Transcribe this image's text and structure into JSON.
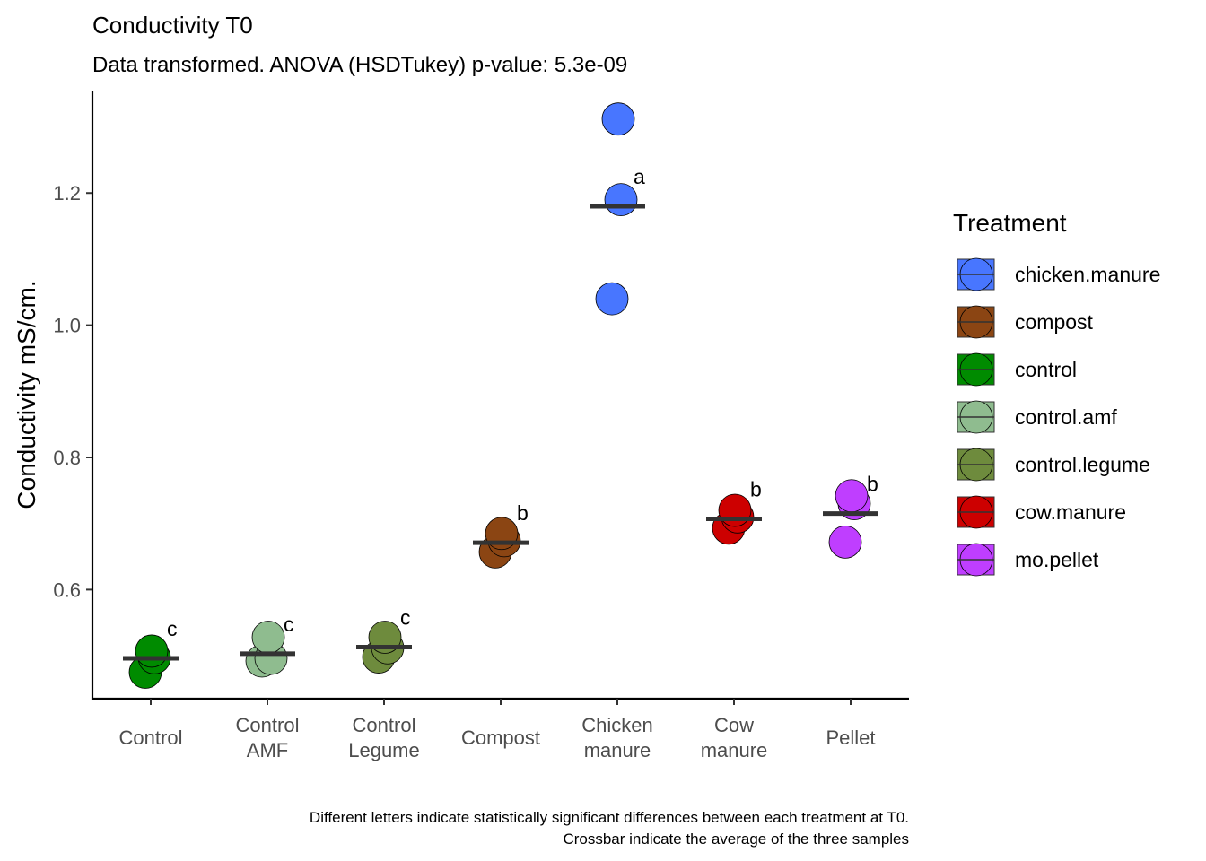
{
  "chart_data": {
    "type": "scatter",
    "title": "Conductivity T0",
    "subtitle": "Data transformed. ANOVA (HSDTukey) p-value: 5.3e-09",
    "xlabel": "",
    "ylabel": "Conductivity mS/cm.",
    "ylim": [
      0.435,
      1.355
    ],
    "yticks": [
      "0.6",
      "0.8",
      "1.0",
      "1.2"
    ],
    "grid": false,
    "categories": [
      "Control",
      "Control\nAMF",
      "Control\nLegume",
      "Compost",
      "Chicken\nmanure",
      "Cow\nmanure",
      "Pellet"
    ],
    "series": [
      {
        "category": "Control",
        "treatment": "control",
        "values": [
          0.475,
          0.497,
          0.507
        ],
        "mean": 0.496,
        "letter": "c",
        "color": "#008b00"
      },
      {
        "category": "Control\nAMF",
        "treatment": "control.amf",
        "values": [
          0.492,
          0.496,
          0.528
        ],
        "mean": 0.503,
        "letter": "c",
        "color": "#8fbc8f"
      },
      {
        "category": "Control\nLegume",
        "treatment": "control.legume",
        "values": [
          0.498,
          0.512,
          0.528
        ],
        "mean": 0.513,
        "letter": "c",
        "color": "#6e8b3d"
      },
      {
        "category": "Compost",
        "treatment": "compost",
        "values": [
          0.657,
          0.674,
          0.685
        ],
        "mean": 0.671,
        "letter": "b",
        "color": "#8b4513"
      },
      {
        "category": "Chicken\nmanure",
        "treatment": "chicken.manure",
        "values": [
          1.04,
          1.19,
          1.312
        ],
        "mean": 1.18,
        "letter": "a",
        "color": "#4876ff"
      },
      {
        "category": "Cow\nmanure",
        "treatment": "cow.manure",
        "values": [
          0.693,
          0.71,
          0.72
        ],
        "mean": 0.707,
        "letter": "b",
        "color": "#cd0000"
      },
      {
        "category": "Pellet",
        "treatment": "mo.pellet",
        "values": [
          0.672,
          0.73,
          0.742
        ],
        "mean": 0.715,
        "letter": "b",
        "color": "#bf3eff"
      }
    ],
    "legend": {
      "title": "Treatment",
      "position": "right",
      "entries": [
        {
          "label": "chicken.manure",
          "color": "#4876ff"
        },
        {
          "label": "compost",
          "color": "#8b4513"
        },
        {
          "label": "control",
          "color": "#008b00"
        },
        {
          "label": "control.amf",
          "color": "#8fbc8f"
        },
        {
          "label": "control.legume",
          "color": "#6e8b3d"
        },
        {
          "label": "cow.manure",
          "color": "#cd0000"
        },
        {
          "label": "mo.pellet",
          "color": "#bf3eff"
        }
      ]
    },
    "caption": [
      "Different letters indicate statistically significant differences between each treatment at T0.",
      "Crossbar indicate the average of the three samples"
    ]
  }
}
